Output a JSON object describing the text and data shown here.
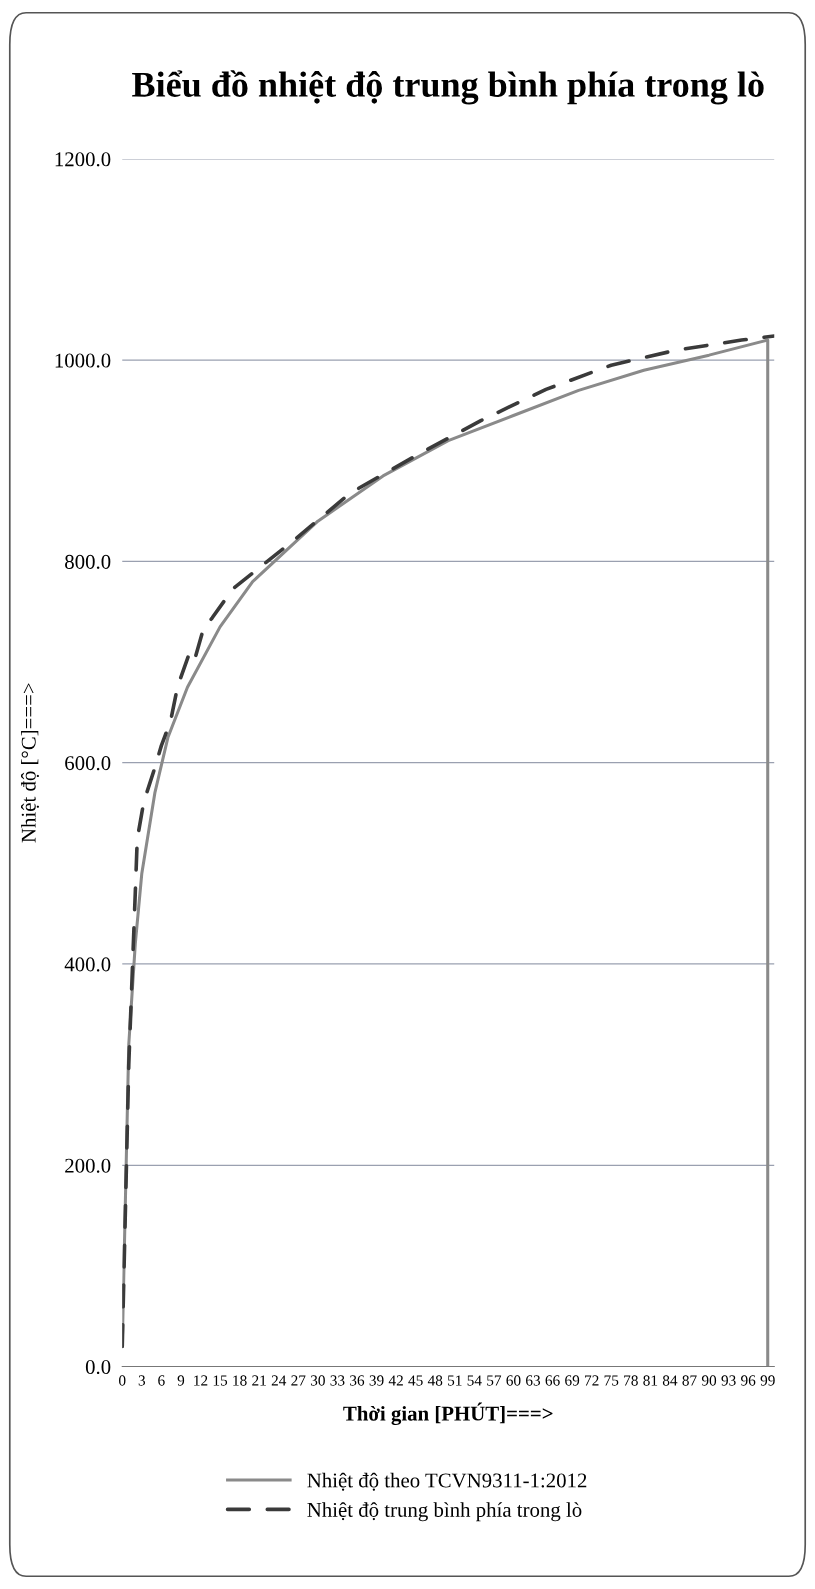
{
  "chart_data": {
    "type": "line",
    "title": "Biểu đồ nhiệt độ trung bình phía trong lò",
    "xlabel": "Thời gian [PHÚT]===>",
    "ylabel": "Nhiệt độ [°C]===>",
    "xlim": [
      0,
      100
    ],
    "xticks": [
      0,
      3,
      6,
      9,
      12,
      15,
      18,
      21,
      24,
      27,
      30,
      33,
      36,
      39,
      42,
      45,
      48,
      51,
      54,
      57,
      60,
      63,
      66,
      69,
      72,
      75,
      78,
      81,
      84,
      87,
      90,
      93,
      96,
      99
    ],
    "ylim": [
      0,
      1200
    ],
    "yticks": [
      {
        "value": 0,
        "label": "0.0"
      },
      {
        "value": 200,
        "label": "200.0"
      },
      {
        "value": 400,
        "label": "400.0"
      },
      {
        "value": 600,
        "label": "600.0"
      },
      {
        "value": 800,
        "label": "800.0"
      },
      {
        "value": 1000,
        "label": "1000.0"
      },
      {
        "value": 1200,
        "label": "1200.0"
      }
    ],
    "grid": "y",
    "legend": "bottom",
    "series": [
      {
        "name": "Nhiệt độ theo TCVN9311-1:2012",
        "color": "#8a8a8a",
        "line_style": "solid",
        "x": [
          0,
          1,
          2,
          3,
          5,
          7,
          10,
          15,
          20,
          30,
          40,
          50,
          60,
          70,
          80,
          90,
          99,
          99
        ],
        "values": [
          20,
          320,
          420,
          490,
          570,
          625,
          675,
          735,
          780,
          840,
          885,
          920,
          945,
          970,
          990,
          1005,
          1020,
          0
        ]
      },
      {
        "name": "Nhiệt độ trung bình phía trong lò",
        "color": "#3a3a3a",
        "line_style": "dashed",
        "x": [
          0,
          1,
          2,
          2.3,
          3.3,
          4.9,
          6,
          7.4,
          8.5,
          10.2,
          11,
          12.4,
          13.8,
          17,
          26.5,
          35,
          45,
          55,
          65,
          75,
          85,
          95,
          100
        ],
        "values": [
          20,
          300,
          471,
          524,
          561,
          593,
          617,
          641,
          676,
          707,
          700,
          732,
          744,
          773,
          822,
          868,
          905,
          940,
          971,
          995,
          1010,
          1020,
          1024
        ]
      }
    ]
  }
}
